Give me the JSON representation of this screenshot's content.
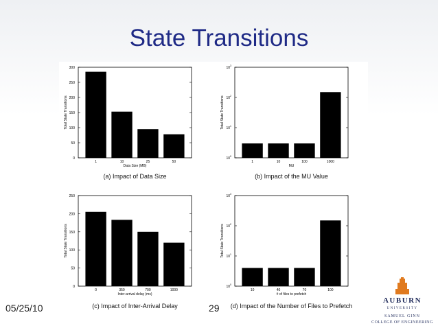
{
  "slide": {
    "title": "State Transitions",
    "date": "05/25/10",
    "page_number": "29"
  },
  "logo": {
    "name": "AUBURN",
    "subtitle": "UNIVERSITY",
    "line1": "SAMUEL GINN",
    "line2": "COLLEGE OF ENGINEERING",
    "color": "#1f2a5a",
    "accent": "#e07a1f"
  },
  "chart_data": [
    {
      "type": "bar",
      "caption": "(a) Impact of Data Size",
      "categories": [
        "1",
        "10",
        "25",
        "50"
      ],
      "values": [
        285,
        153,
        95,
        78
      ],
      "xlabel": "Data Size (MB)",
      "ylabel": "Total State Transitions",
      "ylim": [
        0,
        300
      ],
      "yticks": [
        "0",
        "50",
        "100",
        "150",
        "200",
        "250",
        "300"
      ],
      "yscale": "linear"
    },
    {
      "type": "bar",
      "caption": "(b) Impact of the MU Value",
      "categories": [
        "1",
        "10",
        "100",
        "1000"
      ],
      "values": [
        3,
        3,
        3,
        150
      ],
      "xlabel": "MU",
      "ylabel": "Total State Transitions",
      "ylim": [
        1,
        1000
      ],
      "yticks": [
        "10^0",
        "10^1",
        "10^2",
        "10^3"
      ],
      "yscale": "log"
    },
    {
      "type": "bar",
      "caption": "(c) Impact of Inter-Arrival Delay",
      "categories": [
        "0",
        "350",
        "700",
        "1000"
      ],
      "values": [
        205,
        183,
        150,
        120
      ],
      "xlabel": "Inter-arrival delay (ms)",
      "ylabel": "Total State Transitions",
      "ylim": [
        0,
        250
      ],
      "yticks": [
        "0",
        "50",
        "100",
        "150",
        "200",
        "250"
      ],
      "yscale": "linear"
    },
    {
      "type": "bar",
      "caption": "(d) Impact of the Number of Files to Prefetch",
      "categories": [
        "10",
        "40",
        "70",
        "100"
      ],
      "values": [
        4,
        4,
        4,
        150
      ],
      "xlabel": "# of files to prefetch",
      "ylabel": "Total State Transitions",
      "ylim": [
        1,
        1000
      ],
      "yticks": [
        "10^0",
        "10^1",
        "10^2",
        "10^3"
      ],
      "yscale": "log"
    }
  ]
}
